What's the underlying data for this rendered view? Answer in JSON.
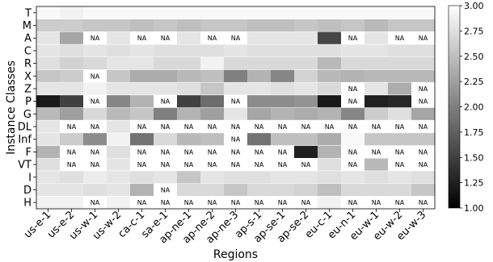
{
  "chart_data": {
    "type": "heatmap",
    "xlabel": "Regions",
    "ylabel": "Instance Classes",
    "x": [
      "us-e-1",
      "us-e-2",
      "us-w-1",
      "us-w-2",
      "ca-c-1",
      "sa-e-1",
      "ap-ne-1",
      "ap-ne-2",
      "ap-ne-3",
      "ap-s-1",
      "ap-se-1",
      "ap-se-2",
      "eu-c-1",
      "eu-n-1",
      "eu-w-1",
      "eu-w-2",
      "eu-w-3"
    ],
    "y": [
      "T",
      "M",
      "A",
      "C",
      "R",
      "X",
      "Z",
      "P",
      "G",
      "DL",
      "Inf",
      "F",
      "VT",
      "I",
      "D",
      "H"
    ],
    "na_label": "NA",
    "values": [
      [
        2.95,
        2.9,
        2.95,
        2.95,
        2.95,
        2.95,
        2.95,
        2.95,
        2.95,
        2.95,
        2.95,
        2.95,
        2.95,
        2.95,
        2.95,
        2.95,
        2.95
      ],
      [
        2.6,
        2.6,
        2.55,
        2.55,
        2.5,
        2.55,
        2.5,
        2.55,
        2.55,
        2.5,
        2.5,
        2.55,
        2.5,
        2.55,
        2.45,
        2.55,
        2.55
      ],
      [
        2.8,
        2.3,
        null,
        2.8,
        null,
        null,
        2.8,
        null,
        null,
        2.8,
        2.8,
        2.8,
        1.55,
        null,
        2.8,
        null,
        null
      ],
      [
        2.8,
        2.75,
        2.8,
        2.75,
        2.8,
        2.75,
        2.75,
        2.75,
        2.8,
        2.75,
        2.75,
        2.75,
        2.75,
        2.8,
        2.8,
        2.75,
        2.75
      ],
      [
        2.75,
        2.65,
        2.7,
        2.8,
        2.8,
        2.7,
        2.7,
        2.9,
        2.7,
        2.7,
        2.7,
        2.7,
        2.45,
        2.7,
        2.7,
        2.7,
        2.7
      ],
      [
        2.55,
        2.6,
        null,
        2.55,
        2.35,
        2.35,
        2.45,
        2.5,
        2.0,
        2.4,
        2.05,
        2.65,
        2.45,
        2.4,
        2.45,
        2.45,
        2.45
      ],
      [
        2.8,
        2.8,
        2.9,
        2.8,
        2.8,
        2.8,
        2.75,
        2.55,
        2.8,
        2.8,
        2.75,
        2.8,
        2.7,
        null,
        2.8,
        2.35,
        null
      ],
      [
        1.2,
        1.5,
        null,
        2.05,
        2.4,
        null,
        1.5,
        1.85,
        null,
        2.1,
        2.1,
        2.15,
        1.2,
        null,
        1.25,
        1.3,
        null
      ],
      [
        2.45,
        2.25,
        2.7,
        2.45,
        2.55,
        2.0,
        2.4,
        2.25,
        2.8,
        2.3,
        2.4,
        2.35,
        2.4,
        2.05,
        2.6,
        2.75,
        2.3
      ],
      [
        2.8,
        null,
        null,
        2.8,
        null,
        null,
        null,
        null,
        null,
        null,
        null,
        null,
        null,
        null,
        null,
        null,
        null
      ],
      [
        2.8,
        2.6,
        2.1,
        2.9,
        1.9,
        2.7,
        2.45,
        2.5,
        null,
        1.9,
        2.5,
        2.5,
        2.35,
        2.95,
        2.55,
        2.55,
        2.55
      ],
      [
        2.4,
        null,
        null,
        2.75,
        null,
        null,
        null,
        null,
        null,
        null,
        null,
        1.25,
        2.4,
        null,
        null,
        null,
        null
      ],
      [
        2.75,
        null,
        null,
        2.8,
        null,
        null,
        null,
        null,
        null,
        null,
        null,
        null,
        2.75,
        null,
        2.45,
        null,
        null
      ],
      [
        2.8,
        2.75,
        2.85,
        2.8,
        2.75,
        2.8,
        2.55,
        2.8,
        2.75,
        2.75,
        2.8,
        2.8,
        2.75,
        2.8,
        2.75,
        2.8,
        2.75
      ],
      [
        2.8,
        2.8,
        2.75,
        2.8,
        2.4,
        null,
        2.7,
        2.7,
        2.55,
        2.7,
        2.7,
        2.65,
        2.5,
        2.7,
        2.7,
        2.7,
        2.55
      ],
      [
        2.9,
        2.9,
        null,
        2.9,
        null,
        null,
        null,
        null,
        null,
        null,
        null,
        null,
        2.9,
        null,
        null,
        null,
        null
      ]
    ],
    "colorbar": {
      "min": 1.0,
      "max": 3.0,
      "colormap": "greys_r",
      "ticks": [
        1.0,
        1.25,
        1.5,
        1.75,
        2.0,
        2.25,
        2.5,
        2.75,
        3.0
      ],
      "tick_labels": [
        "1.00",
        "1.25",
        "1.50",
        "1.75",
        "2.00",
        "2.25",
        "2.50",
        "2.75",
        "3.00"
      ]
    }
  }
}
